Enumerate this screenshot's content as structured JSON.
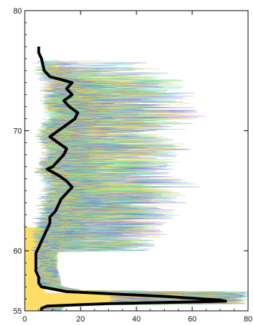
{
  "chart_data": {
    "type": "line",
    "title": "",
    "xlabel": "",
    "ylabel": "",
    "xlim": [
      0,
      80
    ],
    "ylim": [
      55,
      80
    ],
    "xticks": [
      0,
      20,
      40,
      60,
      80
    ],
    "yticks": [
      55,
      60,
      70,
      80
    ],
    "grid": false,
    "series": [
      {
        "name": "",
        "role": "mean",
        "color": "#000000",
        "points": [
          [
            5,
            77
          ],
          [
            5,
            76.5
          ],
          [
            6,
            76
          ],
          [
            7,
            75
          ],
          [
            9,
            74.5
          ],
          [
            14,
            74.2
          ],
          [
            17,
            74
          ],
          [
            15,
            73.5
          ],
          [
            17,
            73
          ],
          [
            14,
            72.5
          ],
          [
            16,
            72
          ],
          [
            19,
            71.5
          ],
          [
            18,
            71
          ],
          [
            15,
            70.5
          ],
          [
            12,
            70
          ],
          [
            9,
            69.5
          ],
          [
            12,
            69
          ],
          [
            15,
            68.5
          ],
          [
            14,
            68
          ],
          [
            12,
            67.5
          ],
          [
            10,
            67
          ],
          [
            8,
            66.8
          ],
          [
            12,
            66.3
          ],
          [
            15,
            65.8
          ],
          [
            17,
            65.3
          ],
          [
            15,
            64.8
          ],
          [
            13,
            64.3
          ],
          [
            12,
            63.8
          ],
          [
            11,
            63.3
          ],
          [
            9,
            62.8
          ],
          [
            9,
            62.3
          ],
          [
            8,
            61.8
          ],
          [
            7,
            61.3
          ],
          [
            6,
            60.8
          ],
          [
            5,
            60.3
          ],
          [
            4,
            59.8
          ],
          [
            4,
            59.3
          ],
          [
            4,
            58.8
          ],
          [
            4,
            58.3
          ],
          [
            5,
            57.8
          ],
          [
            5,
            57.3
          ],
          [
            6,
            57
          ],
          [
            15,
            56.6
          ],
          [
            50,
            56.2
          ],
          [
            70,
            55.9
          ],
          [
            72,
            55.8
          ],
          [
            30,
            55.6
          ],
          [
            8,
            55.4
          ],
          [
            6,
            55.2
          ],
          [
            6,
            55
          ]
        ]
      }
    ],
    "ensemble": {
      "description_colors": [
        "#4fd8d8",
        "#7ee07e",
        "#6a7fe0",
        "#9d6be0",
        "#c9dd80",
        "#ffd23f"
      ],
      "fill_color": "#ffd84d"
    }
  }
}
